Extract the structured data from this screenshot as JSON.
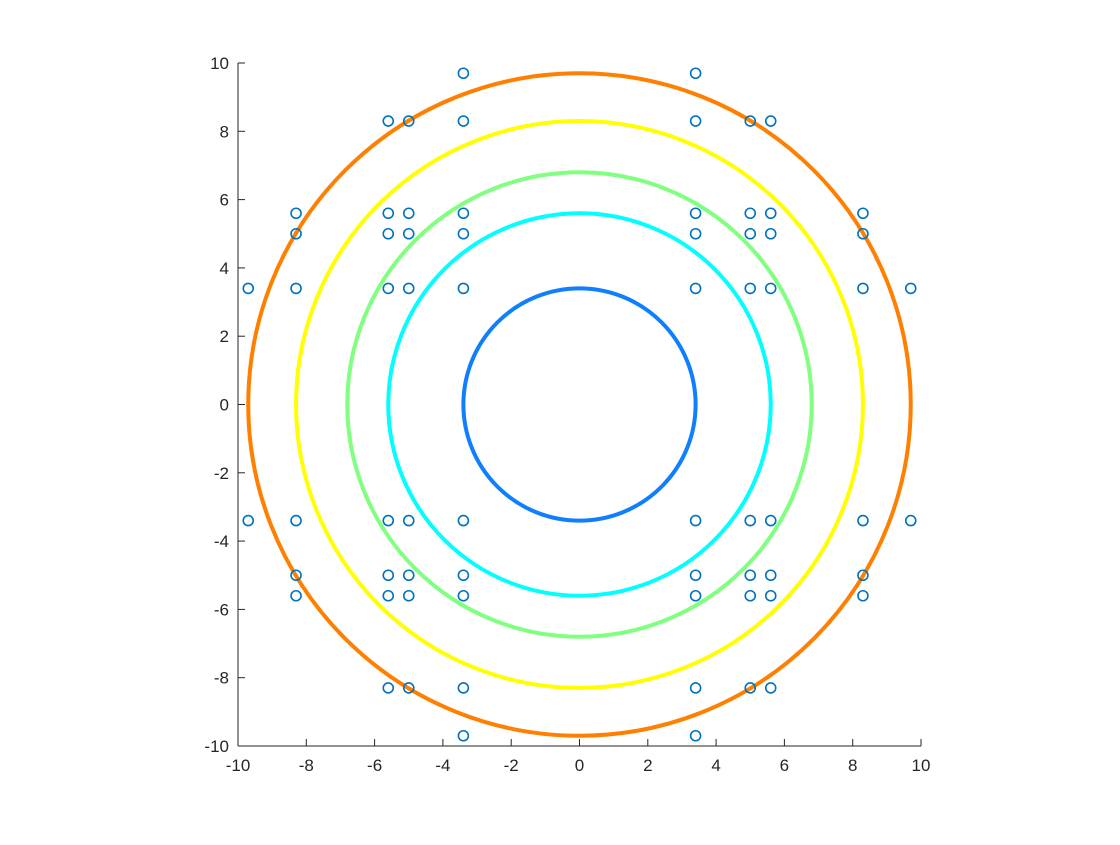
{
  "chart_data": {
    "type": "scatter",
    "title": "",
    "xlabel": "",
    "ylabel": "",
    "xlim": [
      -10,
      10
    ],
    "ylim": [
      -10,
      10
    ],
    "aspect": "equal",
    "grid": false,
    "box": false,
    "xticks": [
      -10,
      -8,
      -6,
      -4,
      -2,
      0,
      2,
      4,
      6,
      8,
      10
    ],
    "yticks": [
      -10,
      -8,
      -6,
      -4,
      -2,
      0,
      2,
      4,
      6,
      8,
      10
    ],
    "xtick_labels": [
      "-10",
      "-8",
      "-6",
      "-4",
      "-2",
      "0",
      "2",
      "4",
      "6",
      "8",
      "10"
    ],
    "ytick_labels": [
      "-10",
      "-8",
      "-6",
      "-4",
      "-2",
      "0",
      "2",
      "4",
      "6",
      "8",
      "10"
    ],
    "circles": [
      {
        "center": [
          0,
          0
        ],
        "radius": 3.4,
        "color": "#0f7fff"
      },
      {
        "center": [
          0,
          0
        ],
        "radius": 5.6,
        "color": "#00ffff"
      },
      {
        "center": [
          0,
          0
        ],
        "radius": 6.8,
        "color": "#80ff80"
      },
      {
        "center": [
          0,
          0
        ],
        "radius": 8.3,
        "color": "#ffff00"
      },
      {
        "center": [
          0,
          0
        ],
        "radius": 9.7,
        "color": "#ff8000"
      }
    ],
    "points": {
      "marker": "circle-open",
      "color": "#0072bd",
      "x": [
        -3.4,
        3.4,
        -5.6,
        -5.0,
        -3.4,
        3.4,
        5.0,
        5.6,
        -8.3,
        -5.6,
        -5.0,
        -3.4,
        3.4,
        5.0,
        5.6,
        8.3,
        -8.3,
        -5.6,
        -5.0,
        -3.4,
        3.4,
        5.0,
        5.6,
        8.3,
        -9.7,
        -8.3,
        -5.6,
        -5.0,
        -3.4,
        3.4,
        5.0,
        5.6,
        8.3,
        9.7,
        -9.7,
        -8.3,
        -5.6,
        -5.0,
        -3.4,
        3.4,
        5.0,
        5.6,
        8.3,
        9.7,
        -8.3,
        -5.6,
        -5.0,
        -3.4,
        3.4,
        5.0,
        5.6,
        8.3,
        -8.3,
        -5.6,
        -5.0,
        -3.4,
        3.4,
        5.0,
        5.6,
        8.3,
        -5.6,
        -5.0,
        -3.4,
        3.4,
        5.0,
        5.6,
        -3.4,
        3.4
      ],
      "y": [
        9.7,
        9.7,
        8.3,
        8.3,
        8.3,
        8.3,
        8.3,
        8.3,
        5.6,
        5.6,
        5.6,
        5.6,
        5.6,
        5.6,
        5.6,
        5.6,
        5.0,
        5.0,
        5.0,
        5.0,
        5.0,
        5.0,
        5.0,
        5.0,
        3.4,
        3.4,
        3.4,
        3.4,
        3.4,
        3.4,
        3.4,
        3.4,
        3.4,
        3.4,
        -3.4,
        -3.4,
        -3.4,
        -3.4,
        -3.4,
        -3.4,
        -3.4,
        -3.4,
        -3.4,
        -3.4,
        -5.0,
        -5.0,
        -5.0,
        -5.0,
        -5.0,
        -5.0,
        -5.0,
        -5.0,
        -5.6,
        -5.6,
        -5.6,
        -5.6,
        -5.6,
        -5.6,
        -5.6,
        -5.6,
        -8.3,
        -8.3,
        -8.3,
        -8.3,
        -8.3,
        -8.3,
        -9.7,
        -9.7
      ]
    }
  }
}
